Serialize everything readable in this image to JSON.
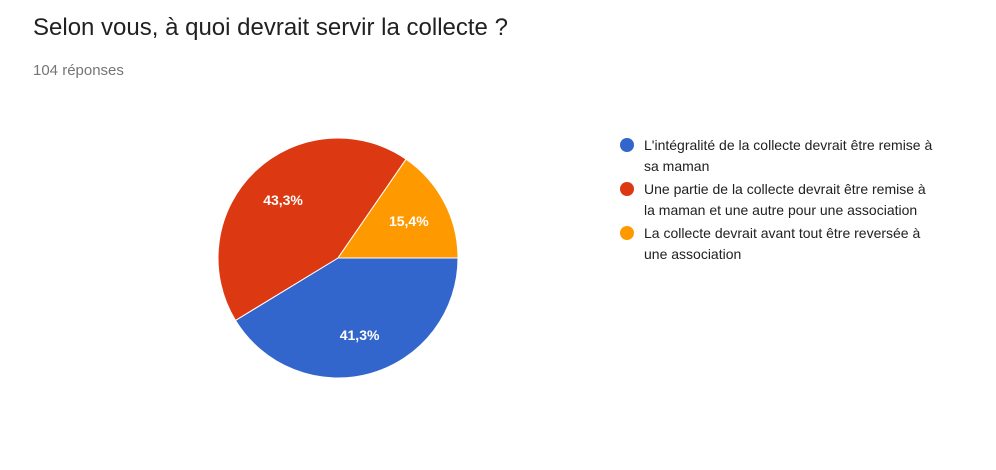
{
  "header": {
    "title": "Selon vous, à quoi devrait servir la collecte ?",
    "response_count": "104 réponses"
  },
  "chart_data": {
    "type": "pie",
    "title": "Selon vous, à quoi devrait servir la collecte ?",
    "legend_position": "right",
    "slices": [
      {
        "label": "L'intégralité de la collecte devrait être remise à sa maman",
        "value": 41.3,
        "display": "41,3%",
        "color": "#3366cc"
      },
      {
        "label": "Une partie de la collecte devrait être remise à la maman et une autre pour une association",
        "value": 43.3,
        "display": "43,3%",
        "color": "#dc3912"
      },
      {
        "label": "La collecte devrait avant tout être reversée à une association",
        "value": 15.4,
        "display": "15,4%",
        "color": "#ff9900"
      }
    ],
    "legend_order": [
      0,
      1,
      2
    ]
  }
}
